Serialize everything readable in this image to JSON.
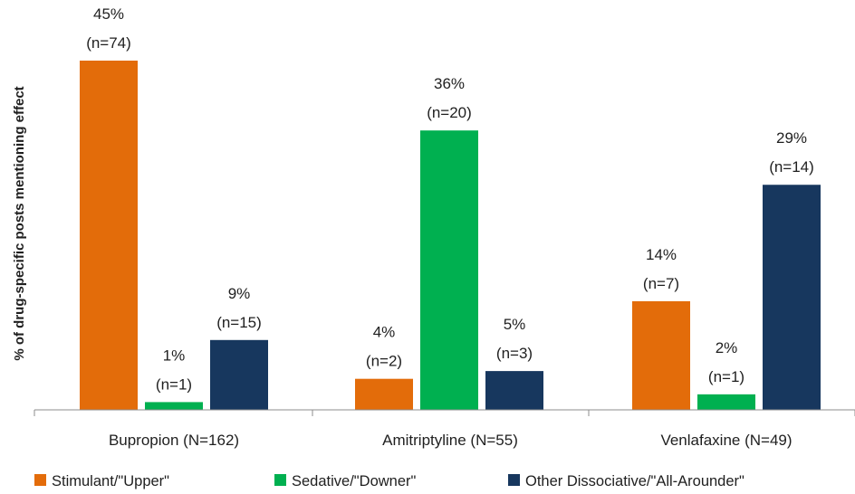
{
  "chart_data": {
    "type": "bar",
    "title": "",
    "xlabel": "",
    "ylabel": "% of drug-specific posts mentioning effect",
    "categories": [
      "Bupropion (N=162)",
      "Amitriptyline (N=55)",
      "Venlafaxine (N=49)"
    ],
    "series": [
      {
        "name": "Stimulant/\"Upper\"",
        "color": "#e36c0a",
        "values": [
          45,
          4,
          14
        ],
        "labels": [
          [
            "45%",
            "(n=74)"
          ],
          [
            "4%",
            "(n=2)"
          ],
          [
            "14%",
            "(n=7)"
          ]
        ]
      },
      {
        "name": "Sedative/\"Downer\"",
        "color": "#00b050",
        "values": [
          1,
          36,
          2
        ],
        "labels": [
          [
            "1%",
            "(n=1)"
          ],
          [
            "36%",
            "(n=20)"
          ],
          [
            "2%",
            "(n=1)"
          ]
        ]
      },
      {
        "name": "Other Dissociative/\"All-Arounder\"",
        "color": "#17375e",
        "values": [
          9,
          5,
          29
        ],
        "labels": [
          [
            "9%",
            "(n=15)"
          ],
          [
            "5%",
            "(n=3)"
          ],
          [
            "29%",
            "(n=14)"
          ]
        ]
      }
    ],
    "ylim": [
      0,
      45
    ],
    "grid": false,
    "legend_position": "bottom"
  }
}
